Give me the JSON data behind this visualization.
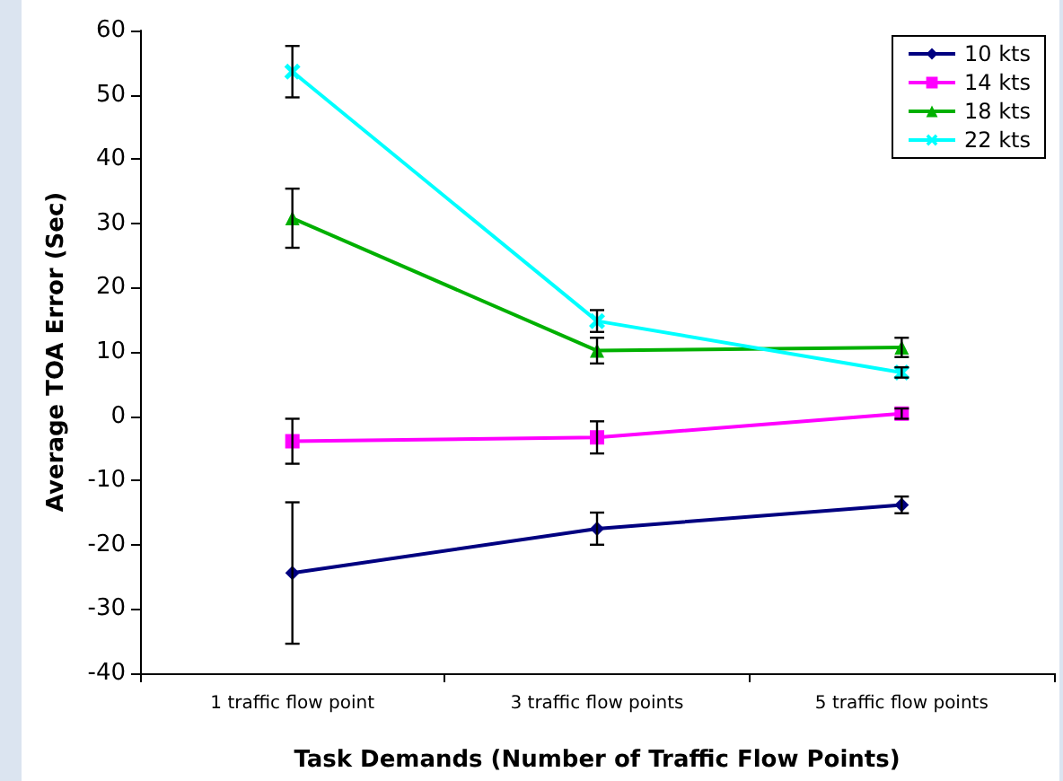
{
  "chart_data": {
    "type": "line",
    "xlabel": "Task Demands (Number of Traffic Flow Points)",
    "ylabel": "Average TOA Error (Sec)",
    "categories": [
      "1 traffic flow point",
      "3 traffic flow points",
      "5 traffic flow points"
    ],
    "series": [
      {
        "name": "10 kts",
        "color": "#000080",
        "marker": "diamond",
        "values": [
          -24.4,
          -17.5,
          -13.8
        ],
        "errors": [
          11,
          2.5,
          1.3
        ]
      },
      {
        "name": "14 kts",
        "color": "#ff00ff",
        "marker": "square",
        "values": [
          -3.9,
          -3.3,
          0.4
        ],
        "errors": [
          3.5,
          2.5,
          0.8
        ]
      },
      {
        "name": "18 kts",
        "color": "#00b000",
        "marker": "triangle",
        "values": [
          30.8,
          10.2,
          10.7
        ],
        "errors": [
          4.6,
          2,
          1.5
        ]
      },
      {
        "name": "22 kts",
        "color": "#00ffff",
        "marker": "cross",
        "values": [
          53.6,
          14.8,
          6.8
        ],
        "errors": [
          4,
          1.7,
          0.8
        ]
      }
    ],
    "ylim": [
      -40,
      60
    ],
    "yticks": [
      -40,
      -30,
      -20,
      -10,
      0,
      10,
      20,
      30,
      40,
      50,
      60
    ],
    "grid": false,
    "legend": "top right"
  }
}
